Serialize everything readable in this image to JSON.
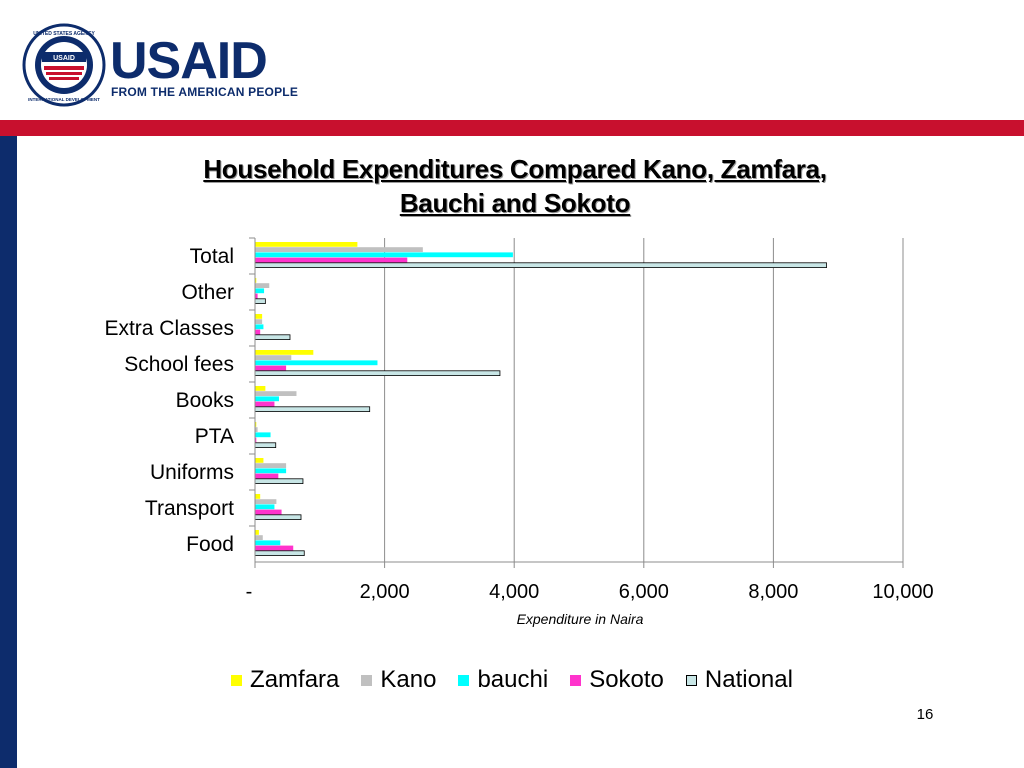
{
  "header": {
    "logo_text": "USAID",
    "logo_tagline": "FROM THE AMERICAN PEOPLE",
    "seal_top_text": "UNITED STATES AGENCY",
    "seal_bottom_text": "INTERNATIONAL DEVELOPMENT",
    "seal_center_text": "USAID"
  },
  "colors": {
    "blue": "#0d2c6c",
    "red": "#c8102e"
  },
  "page_number": "16",
  "chart_data": {
    "type": "bar",
    "orientation": "horizontal",
    "title_line1": "Household Expenditures Compared Kano, Zamfara,",
    "title_line2": "Bauchi and Sokoto",
    "xlabel": "Expenditure in Naira",
    "ylabel": "",
    "xlim": [
      0,
      10000
    ],
    "x_ticks": [
      0,
      2000,
      4000,
      6000,
      8000,
      10000
    ],
    "x_tick_labels": [
      "-",
      "2,000",
      "4,000",
      "6,000",
      "8,000",
      "10,000"
    ],
    "grid": true,
    "legend_position": "bottom",
    "categories": [
      "Total",
      "Other",
      "Extra Classes",
      "School fees",
      "Books",
      "PTA",
      "Uniforms",
      "Transport",
      "Food"
    ],
    "series": [
      {
        "name": "Zamfara",
        "color": "#ffff00",
        "values": [
          1580,
          20,
          110,
          900,
          160,
          20,
          130,
          80,
          60
        ]
      },
      {
        "name": "Kano",
        "color": "#c0c0c0",
        "values": [
          2590,
          220,
          110,
          560,
          640,
          40,
          480,
          330,
          120
        ]
      },
      {
        "name": "bauchi",
        "color": "#00ffff",
        "values": [
          3980,
          140,
          130,
          1890,
          370,
          240,
          480,
          300,
          390
        ]
      },
      {
        "name": "Sokoto",
        "color": "#ff33cc",
        "values": [
          2350,
          40,
          80,
          480,
          300,
          20,
          360,
          410,
          590
        ]
      },
      {
        "name": "National",
        "color": "#c8e6e6",
        "values": [
          8820,
          160,
          540,
          3780,
          1770,
          320,
          740,
          710,
          760
        ]
      }
    ]
  }
}
